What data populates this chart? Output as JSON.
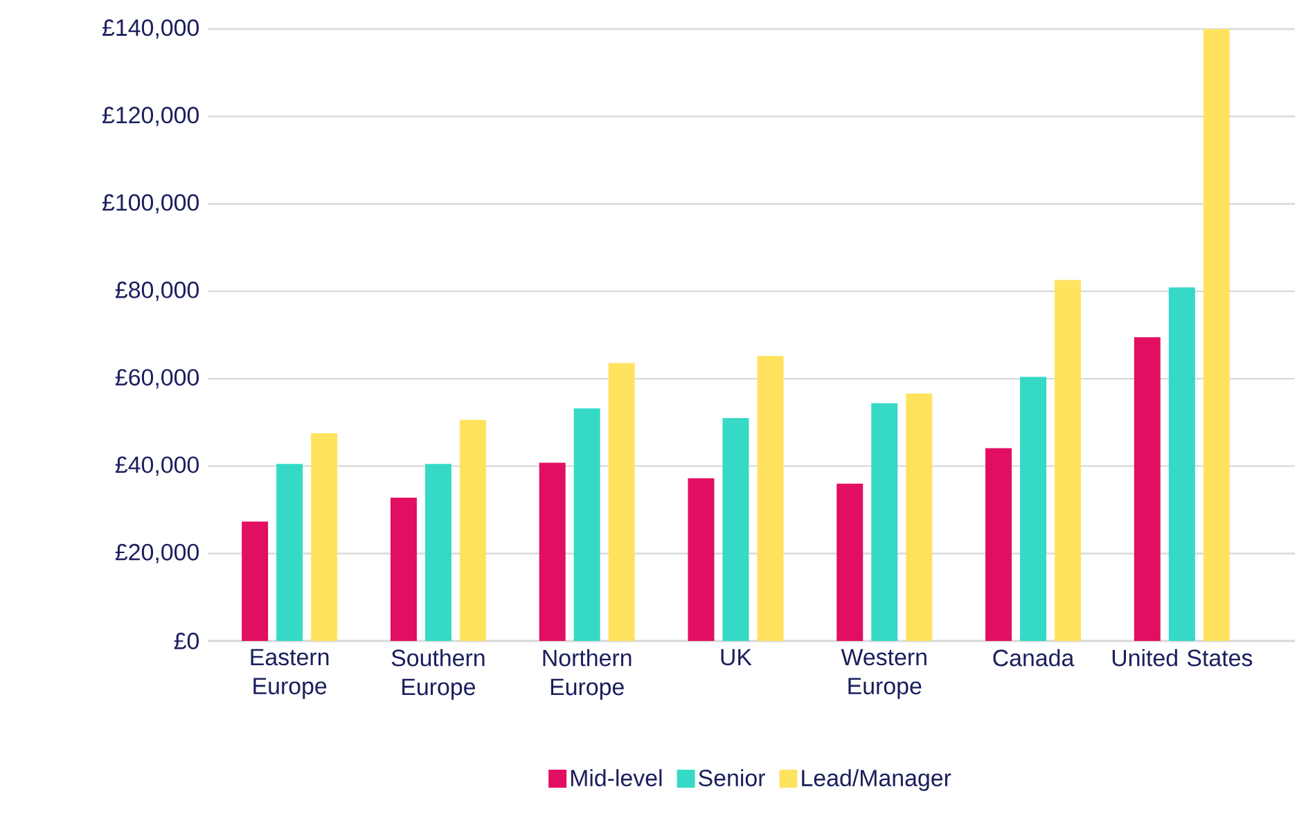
{
  "chart_data": {
    "type": "bar",
    "categories": [
      "Eastern Europe",
      "Southern Europe",
      "Northern Europe",
      "UK",
      "Western Europe",
      "Canada",
      "United States"
    ],
    "series": [
      {
        "name": "Mid-level",
        "color": "#e20e62",
        "values": [
          27300,
          32800,
          40800,
          37200,
          36000,
          44100,
          69500
        ]
      },
      {
        "name": "Senior",
        "color": "#35d9c6",
        "values": [
          40500,
          40500,
          53200,
          51000,
          54400,
          60400,
          80900
        ]
      },
      {
        "name": "Lead/Manager",
        "color": "#ffe35f",
        "values": [
          47500,
          50600,
          63600,
          65200,
          56600,
          82600,
          140000
        ]
      }
    ],
    "ylim": [
      0,
      140000
    ],
    "yticks": [
      {
        "value": 0,
        "label": "£0"
      },
      {
        "value": 20000,
        "label": "£20,000"
      },
      {
        "value": 40000,
        "label": "£40,000"
      },
      {
        "value": 60000,
        "label": "£60,000"
      },
      {
        "value": 80000,
        "label": "£80,000"
      },
      {
        "value": 100000,
        "label": "£100,000"
      },
      {
        "value": 120000,
        "label": "£120,000"
      },
      {
        "value": 140000,
        "label": "£140,000"
      }
    ],
    "grid": "y",
    "legend": "bottom"
  }
}
